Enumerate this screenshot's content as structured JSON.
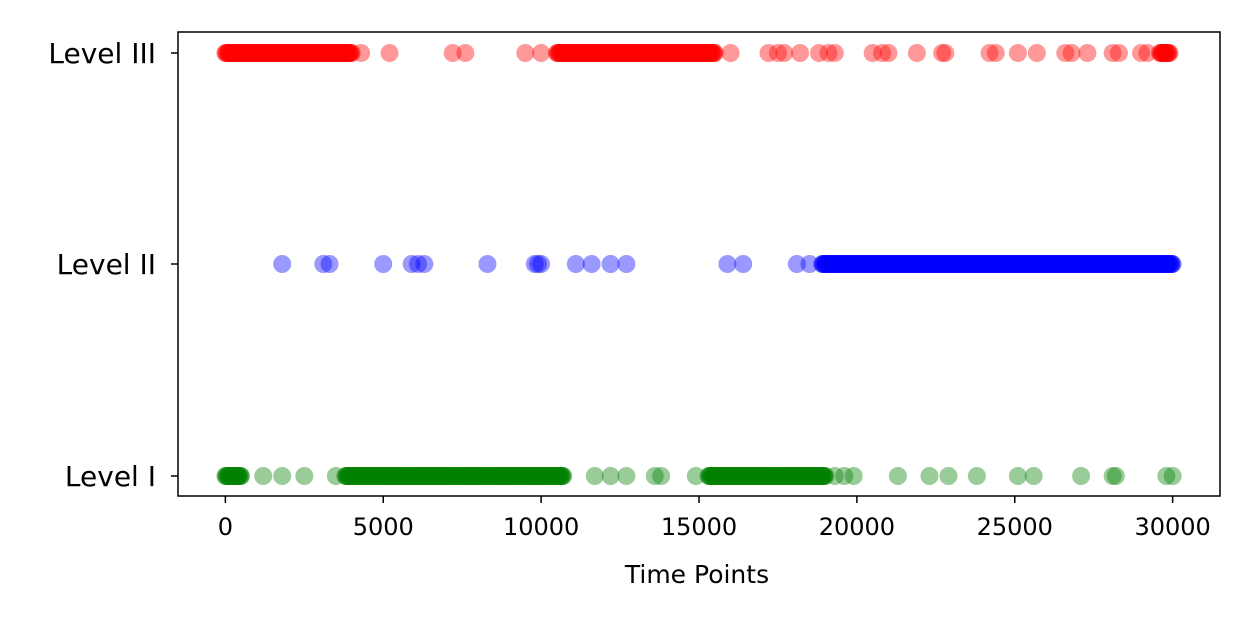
{
  "chart_data": {
    "type": "scatter",
    "xlabel": "Time Points",
    "ylabel": "",
    "xlim": [
      -1500,
      31500
    ],
    "xticks": [
      0,
      5000,
      10000,
      15000,
      20000,
      25000,
      30000
    ],
    "xtick_labels": [
      "0",
      "5000",
      "10000",
      "15000",
      "20000",
      "25000",
      "30000"
    ],
    "categories": [
      "Level I",
      "Level II",
      "Level III"
    ],
    "grid": false,
    "series": [
      {
        "level": "Level III",
        "color": "#ff0000",
        "dense_ranges": [
          [
            0,
            4000
          ],
          [
            10500,
            15500
          ],
          [
            29600,
            29900
          ]
        ],
        "points": [
          4300,
          5200,
          7200,
          7600,
          9500,
          10000,
          16000,
          17200,
          17500,
          17700,
          18200,
          18800,
          19100,
          19300,
          20500,
          20800,
          21000,
          21900,
          22700,
          22800,
          24200,
          24400,
          25100,
          25700,
          26600,
          26800,
          27300,
          28100,
          28300,
          29000,
          29200
        ]
      },
      {
        "level": "Level II",
        "color": "#0000ff",
        "dense_ranges": [
          [
            18900,
            30000
          ]
        ],
        "points": [
          1800,
          3100,
          3300,
          5000,
          5900,
          6100,
          6300,
          8300,
          9800,
          9900,
          10000,
          11100,
          11600,
          12200,
          12700,
          15900,
          16400,
          18100,
          18500
        ]
      },
      {
        "level": "Level I",
        "color": "#008000",
        "dense_ranges": [
          [
            0,
            500
          ],
          [
            3800,
            10700
          ],
          [
            15300,
            19000
          ]
        ],
        "points": [
          1200,
          1800,
          2500,
          3500,
          11700,
          12200,
          12700,
          13600,
          13800,
          14900,
          19300,
          19600,
          19900,
          21300,
          22300,
          22900,
          23800,
          25100,
          25600,
          27100,
          28100,
          28200,
          29800,
          30000
        ]
      }
    ]
  }
}
